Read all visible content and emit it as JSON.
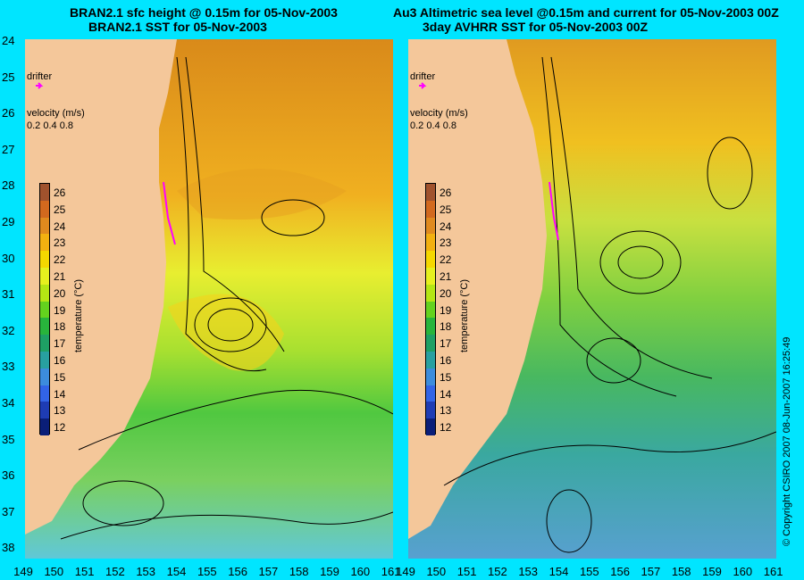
{
  "titles": {
    "left_line1": "BRAN2.1 sfc height @ 0.15m for 05-Nov-2003",
    "left_line2": "BRAN2.1 SST for 05-Nov-2003",
    "right_line1": "Au3 Altimetric sea level  @0.15m and current for 05-Nov-2003 00Z",
    "right_line2": "3day AVHRR SST for 05-Nov-2003 00Z"
  },
  "axes": {
    "y_ticks": [
      "24",
      "25",
      "26",
      "27",
      "28",
      "29",
      "30",
      "31",
      "32",
      "33",
      "34",
      "35",
      "36",
      "37",
      "38"
    ],
    "x_ticks": [
      "149",
      "150",
      "151",
      "152",
      "153",
      "154",
      "155",
      "156",
      "157",
      "158",
      "159",
      "160",
      "161"
    ],
    "x_ticks_right": [
      "149",
      "150",
      "151",
      "152",
      "153",
      "154",
      "155",
      "156",
      "157",
      "158",
      "159",
      "160",
      "161"
    ]
  },
  "legend": {
    "unit": "temperature (°C)",
    "labels": [
      "26",
      "25",
      "24",
      "23",
      "22",
      "21",
      "20",
      "19",
      "18",
      "17",
      "16",
      "15",
      "14",
      "13",
      "12"
    ],
    "colors": [
      "#a0522d",
      "#d2691e",
      "#e08a1e",
      "#f2b010",
      "#f5d800",
      "#e6f01e",
      "#b4e614",
      "#64d21e",
      "#28b43c",
      "#1ea064",
      "#28a0a0",
      "#3c8cdc",
      "#3264e6",
      "#1e3cb4",
      "#0a1e78"
    ]
  },
  "map_labels": {
    "drifter": "drifter",
    "velocity": "velocity (m/s)",
    "velocity_scale": "0.2 0.4 0.8"
  },
  "copyright": "© Copyright CSIRO 2007  08-Jun-2007 16:25:49",
  "colors": {
    "background": "#00e5ff",
    "land": "#f4c79a",
    "drifter": "#ff00ff"
  }
}
